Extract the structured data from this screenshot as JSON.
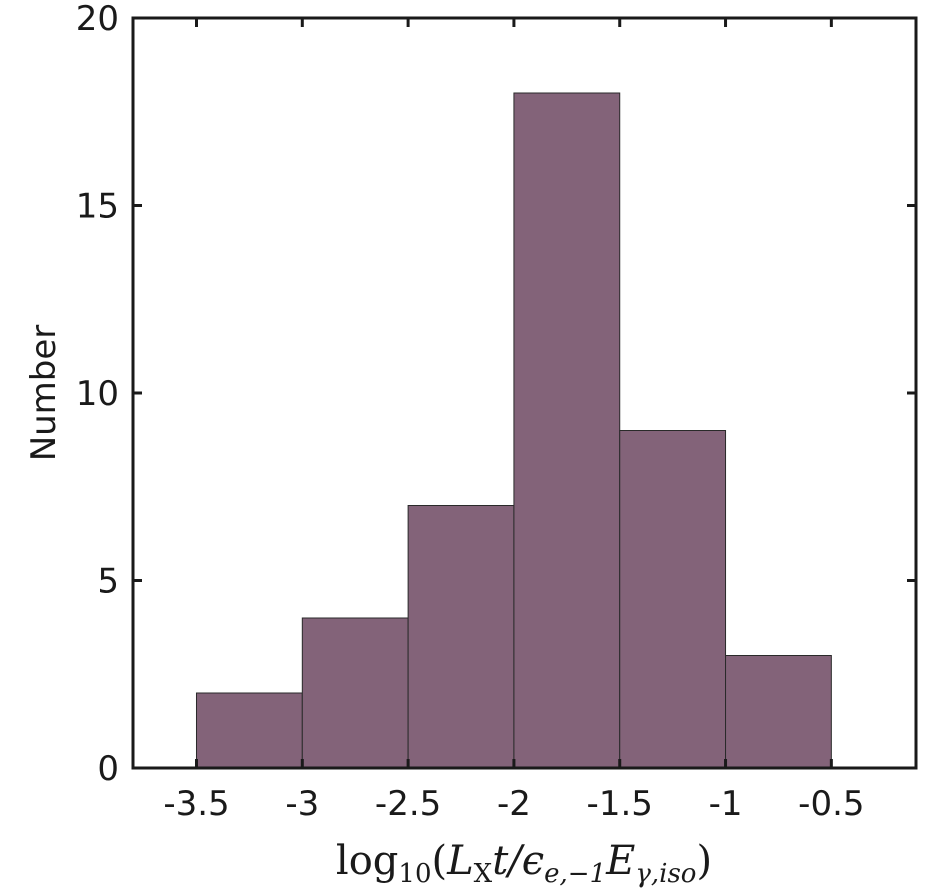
{
  "chart_data": {
    "type": "bar",
    "histogram": true,
    "bin_edges": [
      -3.5,
      -3.0,
      -2.5,
      -2.0,
      -1.5,
      -1.0,
      -0.5
    ],
    "values": [
      2,
      4,
      7,
      18,
      9,
      3
    ],
    "xlim": [
      -3.8,
      -0.1
    ],
    "ylim": [
      0,
      20
    ],
    "xticks": [
      "-3.5",
      "-3",
      "-2.5",
      "-2",
      "-1.5",
      "-1",
      "-0.5"
    ],
    "xtick_values": [
      -3.5,
      -3.0,
      -2.5,
      -2.0,
      -1.5,
      -1.0,
      -0.5
    ],
    "yticks": [
      "0",
      "5",
      "10",
      "15",
      "20"
    ],
    "ytick_values": [
      0,
      5,
      10,
      15,
      20
    ],
    "ylabel": "Number",
    "xlabel": {
      "func": "log",
      "func_sub": "10",
      "open": "(",
      "L": "L",
      "L_sub": "X",
      "t_over": "t/",
      "eps": "ϵ",
      "eps_sub": "e,−1",
      "E": "E",
      "E_sub": "γ,iso",
      "close": ")"
    },
    "grid": false,
    "colors": {
      "bar_fill": "#836379",
      "bar_edge": "#2a2a2a",
      "axis": "#1a1a1a"
    }
  }
}
